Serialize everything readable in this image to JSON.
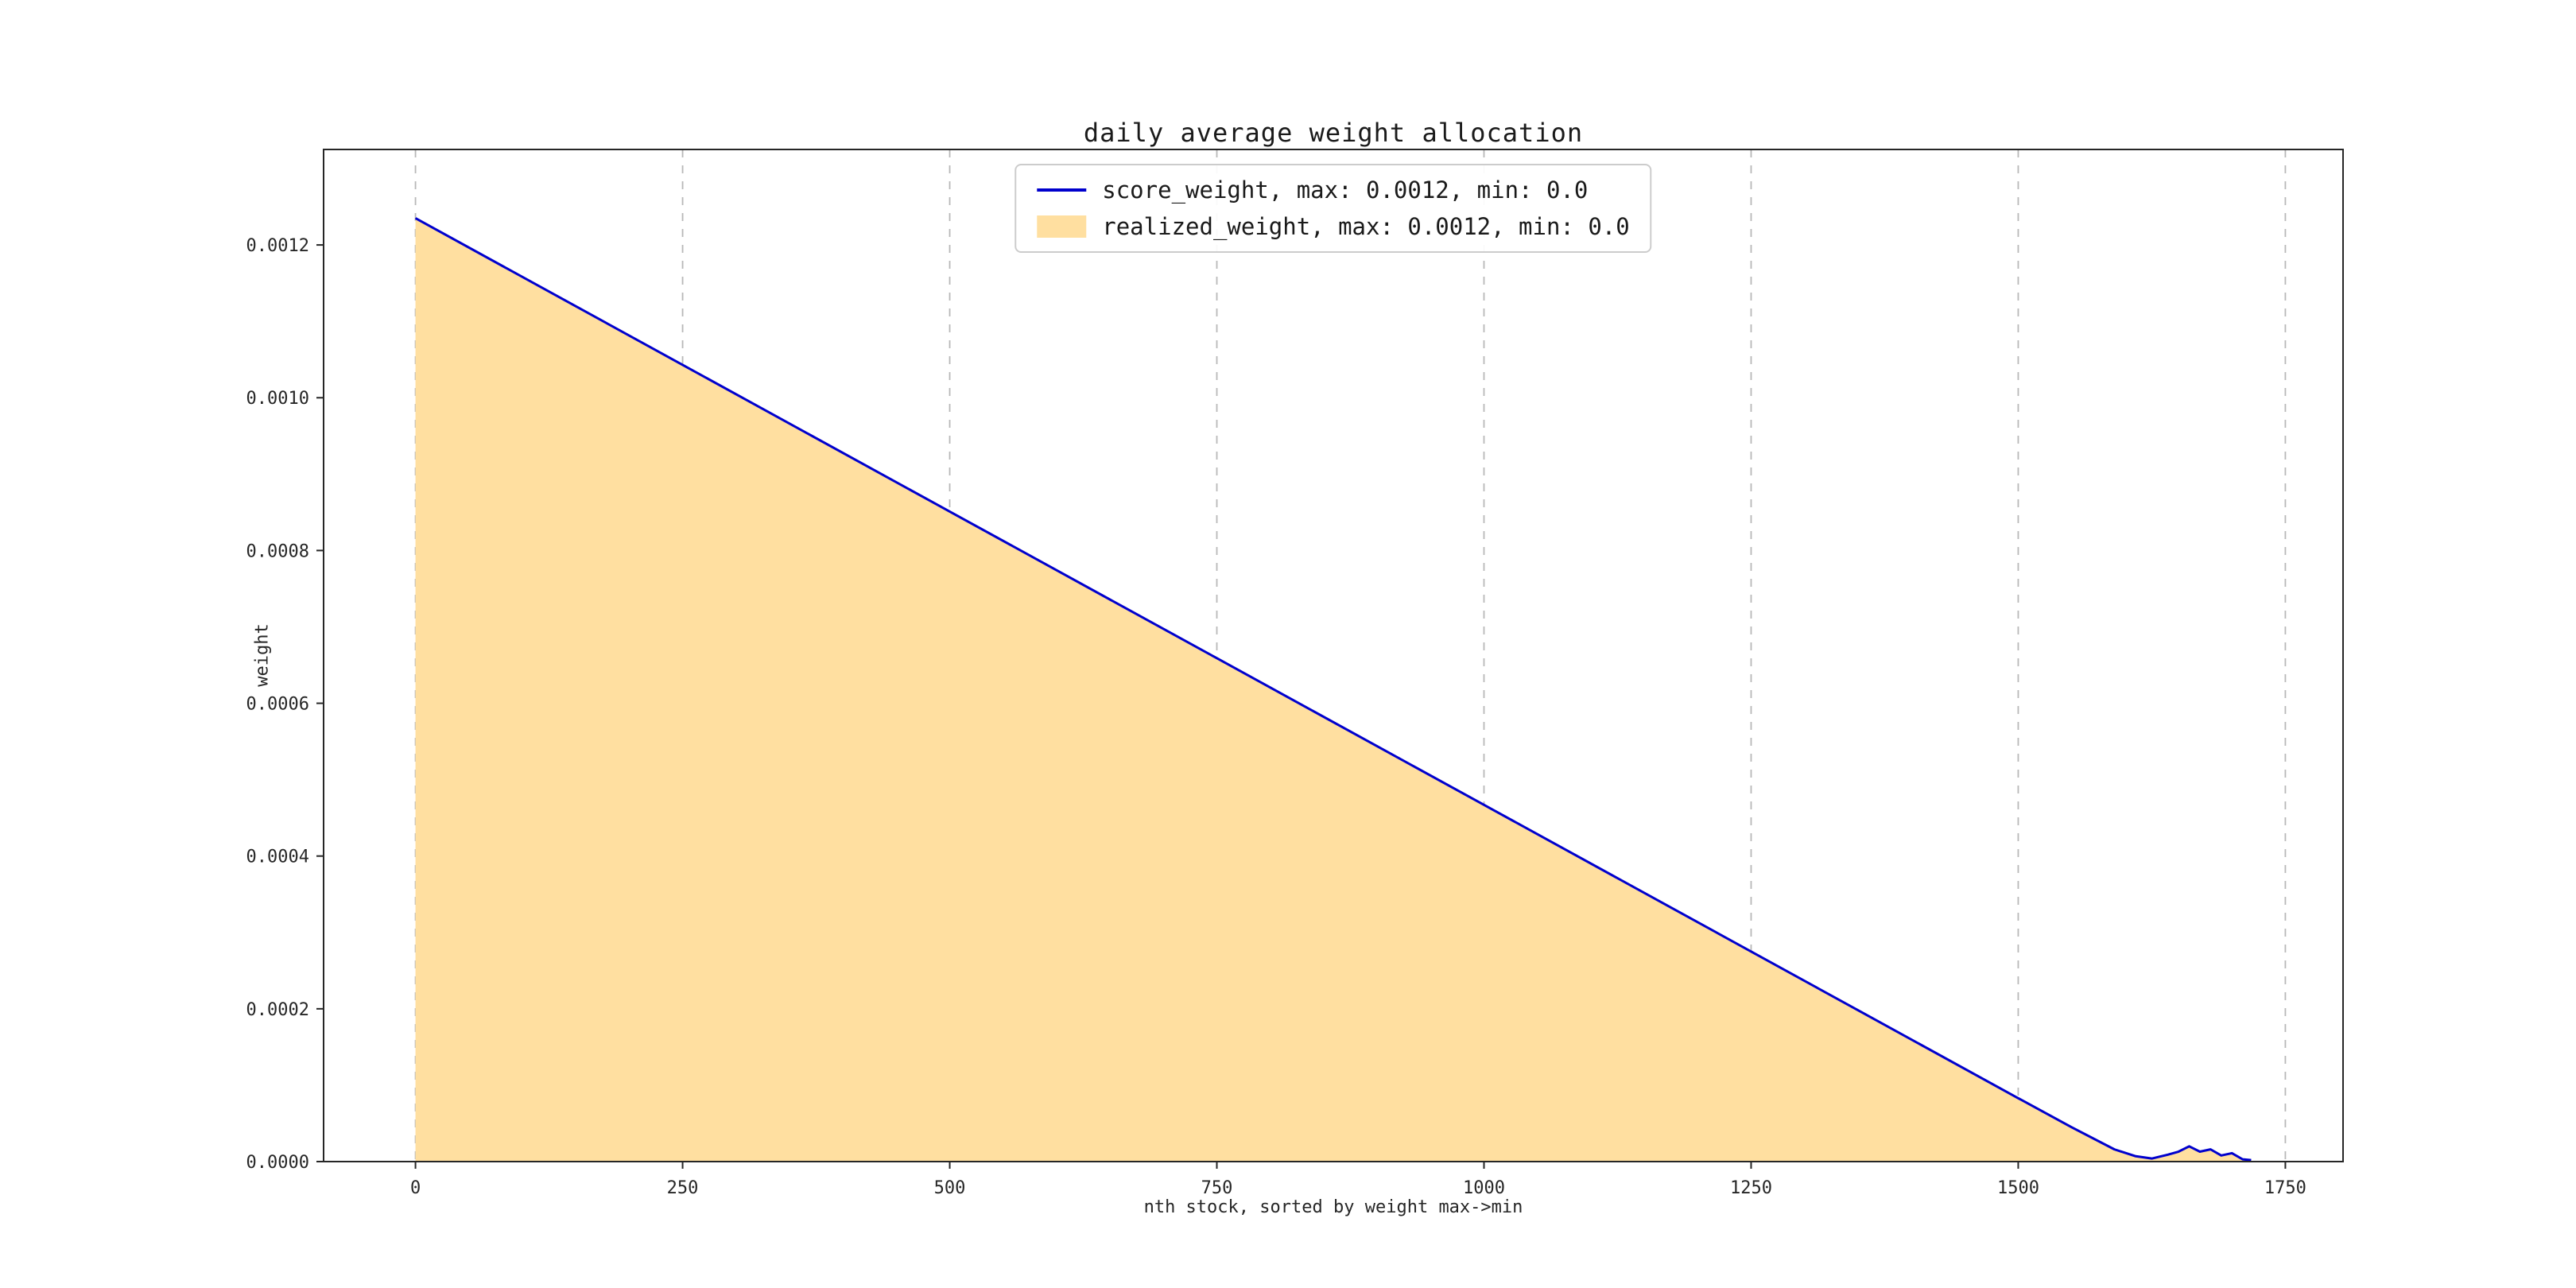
{
  "page": {
    "background": "#ffffff"
  },
  "chart_data": {
    "type": "area",
    "title": "daily average weight allocation",
    "xlabel": "nth stock, sorted by weight max->min",
    "ylabel": "weight",
    "xlim": [
      -86,
      1804
    ],
    "ylim": [
      0,
      0.001325
    ],
    "x_ticks": [
      0,
      250,
      500,
      750,
      1000,
      1250,
      1500,
      1750
    ],
    "y_ticks": [
      "0.0000",
      "0.0002",
      "0.0004",
      "0.0006",
      "0.0008",
      "0.0010",
      "0.0012"
    ],
    "grid": "vertical-dashed",
    "grid_color": "#b8b8b8",
    "frame_color": "#262626",
    "legend_position": "upper center",
    "x": [
      0,
      250,
      500,
      750,
      1000,
      1250,
      1500,
      1550,
      1590,
      1610,
      1625,
      1640,
      1650,
      1660,
      1670,
      1680,
      1690,
      1700,
      1710,
      1718
    ],
    "series": [
      {
        "name": "realized_weight",
        "label": "realized_weight, max: 0.0012, min: 0.0",
        "style": "area",
        "color": "#ffdfa0",
        "max": 0.0012,
        "min": 0.0,
        "values": [
          0.001235,
          0.001043,
          0.000851,
          0.000659,
          0.000467,
          0.000275,
          8.3e-05,
          4.5e-05,
          1.6e-05,
          7e-06,
          4e-06,
          9e-06,
          1.3e-05,
          2e-05,
          1.3e-05,
          1.6e-05,
          8e-06,
          1.1e-05,
          3e-06,
          2e-06
        ]
      },
      {
        "name": "score_weight",
        "label": "score_weight, max: 0.0012, min: 0.0",
        "style": "line",
        "color": "#0000cd",
        "max": 0.0012,
        "min": 0.0,
        "values": [
          0.001235,
          0.001043,
          0.000851,
          0.000659,
          0.000467,
          0.000275,
          8.3e-05,
          4.5e-05,
          1.6e-05,
          7e-06,
          4e-06,
          9e-06,
          1.3e-05,
          2e-05,
          1.3e-05,
          1.6e-05,
          8e-06,
          1.1e-05,
          3e-06,
          2e-06
        ]
      }
    ]
  }
}
